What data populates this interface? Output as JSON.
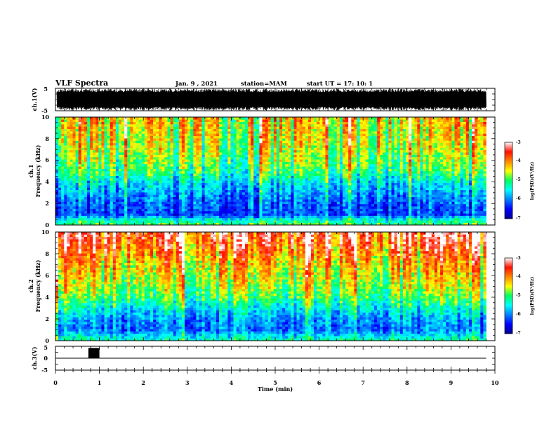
{
  "header": {
    "title": "VLF Spectra",
    "date": "Jan. 9 , 2021",
    "station": "station=MAM",
    "start": "start UT =  17: 10: 1"
  },
  "chart_data": [
    {
      "type": "line",
      "panel": "ch1-waveform",
      "ylabel": "ch.1(V)",
      "yticks": [
        "5",
        "-5"
      ],
      "ylim": [
        -5,
        5
      ],
      "x_range": [
        0,
        10
      ],
      "trace": "dense oscillating waveform spanning nearly full range from 0 to about 9.8 min"
    },
    {
      "type": "heatmap",
      "panel": "ch1-spectrogram",
      "ylabel_line1": "ch.1",
      "ylabel_line2": "Frequency (kHz)",
      "ylim": [
        0,
        10
      ],
      "yticks": [
        "0",
        "2",
        "4",
        "6",
        "8",
        "10"
      ],
      "x_range": [
        0,
        10
      ],
      "data_extent_min": 9.8,
      "colorbar": {
        "label": "log(PSD)(V²/Hz)",
        "ticks": [
          "-3",
          "-4",
          "-5",
          "-6",
          "-7"
        ],
        "range": [
          -7,
          -3
        ]
      },
      "profile": {
        "freq_khz": [
          0,
          0.5,
          1,
          2,
          3,
          4,
          5,
          6,
          7,
          8,
          9,
          10
        ],
        "log_psd": [
          -5.0,
          -5.4,
          -6.3,
          -6.2,
          -5.9,
          -5.6,
          -5.1,
          -4.9,
          -4.7,
          -4.6,
          -4.5,
          -4.4
        ]
      }
    },
    {
      "type": "heatmap",
      "panel": "ch2-spectrogram",
      "ylabel_line1": "ch.2",
      "ylabel_line2": "Frequency (kHz)",
      "ylim": [
        0,
        10
      ],
      "yticks": [
        "0",
        "2",
        "4",
        "6",
        "8",
        "10"
      ],
      "x_range": [
        0,
        10
      ],
      "data_extent_min": 9.8,
      "colorbar": {
        "label": "log(PSD)(V²/Hz)",
        "ticks": [
          "-3",
          "-4",
          "-5",
          "-6",
          "-7"
        ],
        "range": [
          -7,
          -3
        ]
      },
      "profile": {
        "freq_khz": [
          0,
          0.5,
          1,
          2,
          3,
          4,
          5,
          6,
          7,
          8,
          9,
          10
        ],
        "log_psd": [
          -5.2,
          -5.6,
          -6.1,
          -5.9,
          -5.5,
          -5.0,
          -4.7,
          -4.5,
          -4.3,
          -4.0,
          -3.7,
          -3.5
        ]
      }
    },
    {
      "type": "line",
      "panel": "ch3-waveform",
      "ylabel": "ch.3(V)",
      "yticks": [
        "5",
        "0",
        "-5"
      ],
      "ylim": [
        -5,
        5
      ],
      "x_range": [
        0,
        10
      ],
      "baseline_v": 0,
      "burst": {
        "x_start": 0.75,
        "x_end": 1.0,
        "y_min": 0,
        "y_max": 5
      }
    }
  ],
  "xaxis": {
    "label": "Time (min)",
    "ticks": [
      "0",
      "1",
      "2",
      "3",
      "4",
      "5",
      "6",
      "7",
      "8",
      "9",
      "10"
    ]
  },
  "colors": {
    "low": "#00008f",
    "mid": "#00ff60",
    "high": "#ff1000"
  }
}
